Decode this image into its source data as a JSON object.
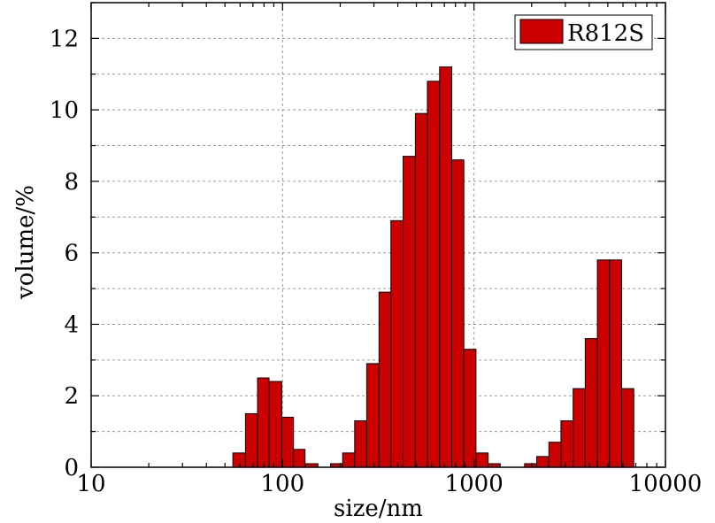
{
  "chart_data": {
    "type": "bar",
    "x_scale": "log",
    "xlim": [
      10,
      10000
    ],
    "ylim": [
      0,
      13
    ],
    "xlabel": "size/nm",
    "ylabel": "volume/%",
    "x_ticks": [
      "10",
      "100",
      "1000",
      "10000"
    ],
    "y_ticks": [
      "0",
      "2",
      "4",
      "6",
      "8",
      "10",
      "12"
    ],
    "grid": true,
    "legend_position": "top-right",
    "bar_color": "#cc0000",
    "series": [
      {
        "name": "R812S",
        "bins": [
          {
            "x0": 55,
            "x1": 64,
            "value": 0.4
          },
          {
            "x0": 64,
            "x1": 74,
            "value": 1.5
          },
          {
            "x0": 74,
            "x1": 85,
            "value": 2.5
          },
          {
            "x0": 85,
            "x1": 99,
            "value": 2.4
          },
          {
            "x0": 99,
            "x1": 114,
            "value": 1.4
          },
          {
            "x0": 114,
            "x1": 131,
            "value": 0.5
          },
          {
            "x0": 131,
            "x1": 153,
            "value": 0.1
          },
          {
            "x0": 178,
            "x1": 206,
            "value": 0.1
          },
          {
            "x0": 206,
            "x1": 238,
            "value": 0.4
          },
          {
            "x0": 238,
            "x1": 275,
            "value": 1.3
          },
          {
            "x0": 275,
            "x1": 319,
            "value": 2.9
          },
          {
            "x0": 319,
            "x1": 368,
            "value": 4.9
          },
          {
            "x0": 368,
            "x1": 426,
            "value": 6.9
          },
          {
            "x0": 426,
            "x1": 494,
            "value": 8.7
          },
          {
            "x0": 494,
            "x1": 571,
            "value": 9.9
          },
          {
            "x0": 571,
            "x1": 661,
            "value": 10.8
          },
          {
            "x0": 661,
            "x1": 765,
            "value": 11.2
          },
          {
            "x0": 765,
            "x1": 885,
            "value": 8.6
          },
          {
            "x0": 885,
            "x1": 1024,
            "value": 3.3
          },
          {
            "x0": 1024,
            "x1": 1185,
            "value": 0.4
          },
          {
            "x0": 1185,
            "x1": 1371,
            "value": 0.1
          },
          {
            "x0": 1837,
            "x1": 2126,
            "value": 0.1
          },
          {
            "x0": 2126,
            "x1": 2460,
            "value": 0.3
          },
          {
            "x0": 2460,
            "x1": 2846,
            "value": 0.7
          },
          {
            "x0": 2846,
            "x1": 3294,
            "value": 1.3
          },
          {
            "x0": 3294,
            "x1": 3811,
            "value": 2.2
          },
          {
            "x0": 3811,
            "x1": 4410,
            "value": 3.6
          },
          {
            "x0": 4410,
            "x1": 5103,
            "value": 5.8
          },
          {
            "x0": 5103,
            "x1": 5904,
            "value": 5.8
          },
          {
            "x0": 5904,
            "x1": 6832,
            "value": 2.2
          }
        ]
      }
    ]
  }
}
